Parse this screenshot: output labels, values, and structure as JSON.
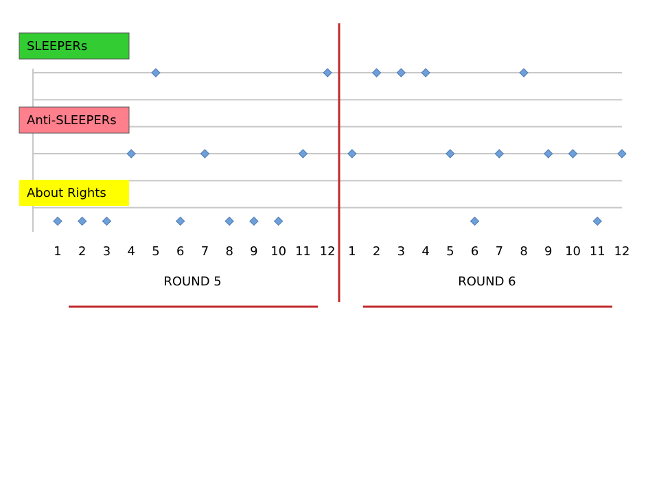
{
  "chart_data": {
    "type": "dot",
    "categories": [
      "1",
      "2",
      "3",
      "4",
      "5",
      "6",
      "7",
      "8",
      "9",
      "10",
      "11",
      "12",
      "1",
      "2",
      "3",
      "4",
      "5",
      "6",
      "7",
      "8",
      "9",
      "10",
      "11",
      "12"
    ],
    "group_labels": [
      "ROUND 5",
      "ROUND 6"
    ],
    "ylim": [
      0,
      6
    ],
    "yticks": [
      1,
      2,
      3,
      4,
      5,
      6
    ],
    "grid": true,
    "series": [
      {
        "name": "SLEEPERs",
        "color": "#6f9fd8",
        "box_color": "#33cc33",
        "values": [
          null,
          null,
          null,
          null,
          6,
          null,
          null,
          null,
          null,
          null,
          null,
          6,
          null,
          6,
          6,
          6,
          null,
          null,
          null,
          6,
          null,
          null,
          null,
          null
        ]
      },
      {
        "name": "Anti-SLEEPERs",
        "color": "#6f9fd8",
        "box_color": "#ff7f8c",
        "values": [
          null,
          null,
          null,
          3,
          null,
          null,
          3,
          null,
          null,
          null,
          3,
          null,
          3,
          null,
          null,
          null,
          3,
          null,
          3,
          null,
          3,
          3,
          null,
          3
        ]
      },
      {
        "name": "About Rights",
        "color": "#6f9fd8",
        "box_color": "#ffff00",
        "values": [
          0.5,
          0.5,
          0.5,
          null,
          null,
          0.5,
          null,
          0.5,
          0.5,
          0.5,
          null,
          null,
          null,
          null,
          null,
          null,
          null,
          0.5,
          null,
          null,
          null,
          null,
          0.5,
          null
        ]
      }
    ]
  }
}
